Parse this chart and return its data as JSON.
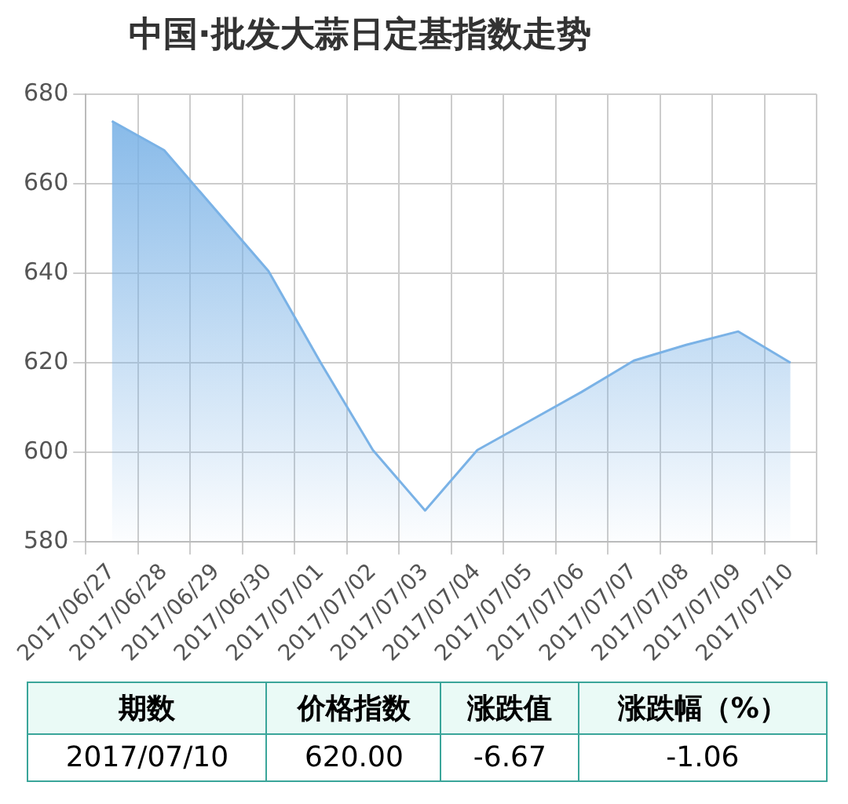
{
  "chart_data": {
    "type": "area",
    "title": "中国·批发大蒜日定基指数走势",
    "categories": [
      "2017/06/27",
      "2017/06/28",
      "2017/06/29",
      "2017/06/30",
      "2017/07/01",
      "2017/07/02",
      "2017/07/03",
      "2017/07/04",
      "2017/07/05",
      "2017/07/06",
      "2017/07/07",
      "2017/07/08",
      "2017/07/09",
      "2017/07/10"
    ],
    "series": [
      {
        "color": "#7ab2e6",
        "values": [
          674,
          667.5,
          654,
          640.5,
          620,
          600.5,
          587,
          600.5,
          607,
          613.5,
          620.5,
          624,
          627,
          620
        ]
      }
    ],
    "ylim": [
      580,
      680
    ],
    "yticks": [
      580,
      600,
      620,
      640,
      660,
      680
    ],
    "grid": true,
    "legend": false,
    "marker": "none",
    "annotations": [
      "期数",
      "价格指数",
      "涨跌值",
      "涨跌幅（%）",
      "2017/07/10",
      "620.00",
      "-6.67",
      "-1.06"
    ]
  }
}
